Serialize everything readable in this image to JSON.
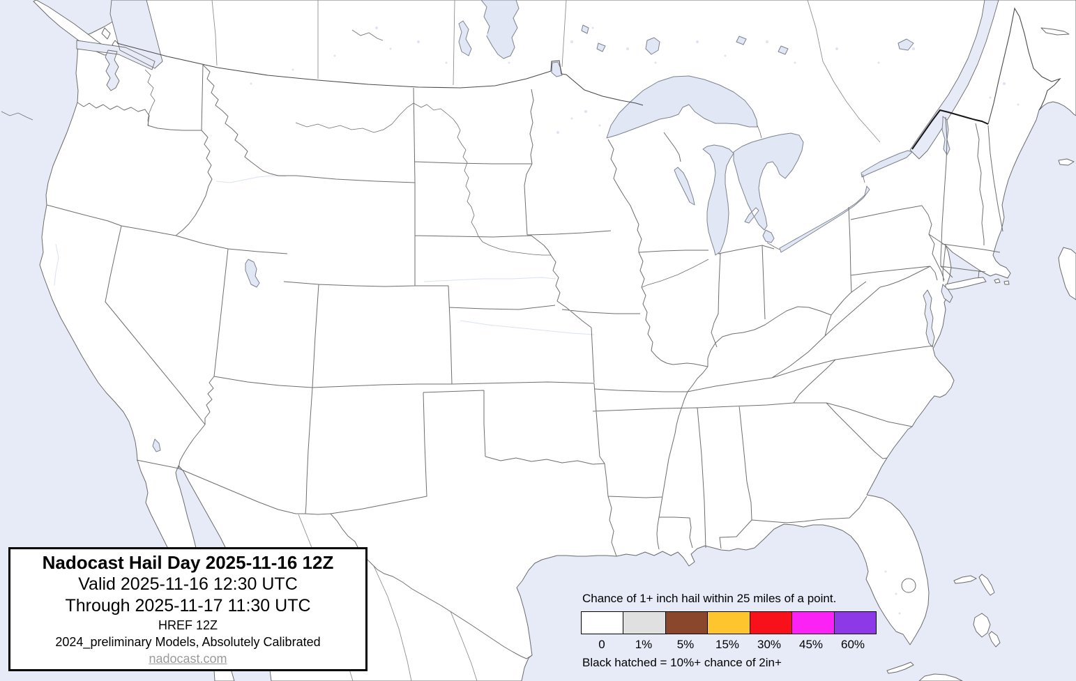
{
  "title_box": {
    "title": "Nadocast Hail Day 2025-11-16 12Z",
    "valid": "Valid 2025-11-16 12:30 UTC",
    "through": "Through 2025-11-17 11:30 UTC",
    "model": "HREF 12Z",
    "calibration": "2024_preliminary Models, Absolutely Calibrated",
    "website": "nadocast.com"
  },
  "legend": {
    "caption": "Chance of 1+ inch hail within 25 miles of a point.",
    "note": "Black hatched = 10%+ chance of 2in+",
    "scale": [
      {
        "label": "0",
        "color": "#ffffff"
      },
      {
        "label": "1%",
        "color": "#e0e0e0"
      },
      {
        "label": "5%",
        "color": "#8a472c"
      },
      {
        "label": "15%",
        "color": "#fec52f"
      },
      {
        "label": "30%",
        "color": "#f8101a"
      },
      {
        "label": "45%",
        "color": "#fb22f5"
      },
      {
        "label": "60%",
        "color": "#8d39e8"
      }
    ]
  },
  "map": {
    "region": "Continental United States and surroundings",
    "water_color": "#e7ebf8",
    "land_color": "#ffffff",
    "border_color": "#6e6e6e",
    "intl_border_color": "#151515"
  }
}
